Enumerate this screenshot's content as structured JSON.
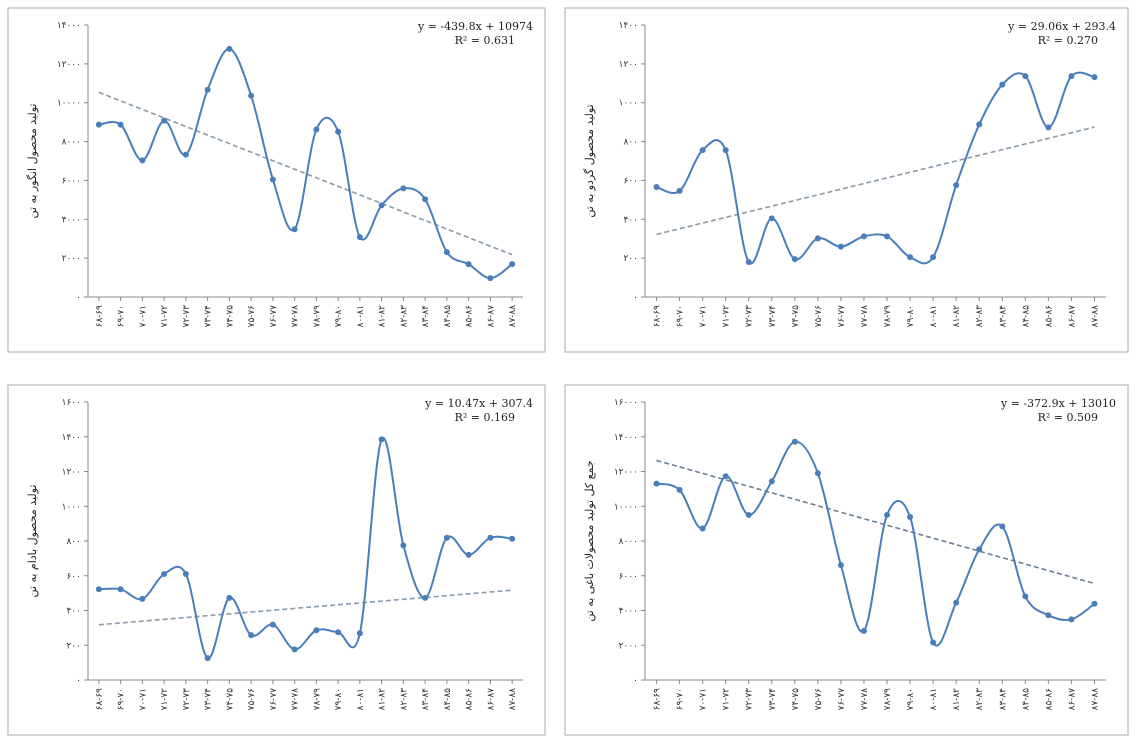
{
  "chart_data": [
    {
      "type": "line",
      "y_label": "تولید محصول انگور به تن",
      "categories": [
        "۶۸-۶۹",
        "۶۹-۷۰",
        "۷۰-۷۱",
        "۷۱-۷۲",
        "۷۲-۷۳",
        "۷۳-۷۴",
        "۷۴-۷۵",
        "۷۵-۷۶",
        "۷۶-۷۷",
        "۷۷-۷۸",
        "۷۸-۷۹",
        "۷۹-۸۰",
        "۸۰-۸۱",
        "۸۱-۸۲",
        "۸۲-۸۳",
        "۸۳-۸۴",
        "۸۴-۸۵",
        "۸۵-۸۶",
        "۸۶-۸۷",
        "۸۷-۸۸"
      ],
      "values": [
        8870,
        8870,
        7030,
        9080,
        7330,
        10670,
        12770,
        10360,
        6050,
        3490,
        8620,
        8510,
        3080,
        4720,
        5590,
        5030,
        2310,
        1690,
        970,
        1690
      ],
      "color": "#4a7ebb",
      "ylim": [
        0,
        14000
      ],
      "yticks": [
        {
          "value": 0,
          "label": "۰"
        },
        {
          "value": 2000,
          "label": "۲۰۰۰"
        },
        {
          "value": 4000,
          "label": "۴۰۰۰"
        },
        {
          "value": 6000,
          "label": "۶۰۰۰"
        },
        {
          "value": 8000,
          "label": "۸۰۰۰"
        },
        {
          "value": 10000,
          "label": "۱۰۰۰۰"
        },
        {
          "value": 12000,
          "label": "۱۲۰۰۰"
        },
        {
          "value": 14000,
          "label": "۱۴۰۰۰"
        }
      ],
      "trendline": {
        "slope": -439.8,
        "intercept": 10974,
        "equation": "y = -439.8x + 10974",
        "r2": "R² = 0.631",
        "color": "#8a9aa8"
      }
    },
    {
      "type": "line",
      "y_label": "تولید محصول گردو به تن",
      "categories": [
        "۶۸-۶۹",
        "۶۹-۷۰",
        "۷۰-۷۱",
        "۷۱-۷۲",
        "۷۲-۷۳",
        "۷۳-۷۴",
        "۷۴-۷۵",
        "۷۵-۷۶",
        "۷۶-۷۷",
        "۷۷-۷۸",
        "۷۸-۷۹",
        "۷۹-۸۰",
        "۸۰-۸۱",
        "۸۱-۸۲",
        "۸۲-۸۳",
        "۸۳-۸۴",
        "۸۴-۸۵",
        "۸۵-۸۶",
        "۸۶-۸۷",
        "۸۷-۸۸"
      ],
      "values": [
        566,
        546,
        756,
        756,
        180,
        405,
        195,
        302,
        259,
        312,
        312,
        205,
        205,
        576,
        888,
        1093,
        1137,
        873,
        1137,
        1132
      ],
      "color": "#4a7ebb",
      "ylim": [
        0,
        1400
      ],
      "yticks": [
        {
          "value": 0,
          "label": "۰"
        },
        {
          "value": 200,
          "label": "۲۰۰"
        },
        {
          "value": 400,
          "label": "۴۰۰"
        },
        {
          "value": 600,
          "label": "۶۰۰"
        },
        {
          "value": 800,
          "label": "۸۰۰"
        },
        {
          "value": 1000,
          "label": "۱۰۰۰"
        },
        {
          "value": 1200,
          "label": "۱۲۰۰"
        },
        {
          "value": 1400,
          "label": "۱۴۰۰"
        }
      ],
      "trendline": {
        "slope": 29.06,
        "intercept": 293.4,
        "equation": "y = 29.06x + 293.4",
        "r2": "R² = 0.270",
        "color": "#8a9aa8"
      }
    },
    {
      "type": "line",
      "y_label": "تولید محصول بادام به تن",
      "categories": [
        "۶۸-۶۹",
        "۶۹-۷۰",
        "۷۰-۷۱",
        "۷۱-۷۲",
        "۷۲-۷۳",
        "۷۳-۷۴",
        "۷۴-۷۵",
        "۷۵-۷۶",
        "۷۶-۷۷",
        "۷۷-۷۸",
        "۷۸-۷۹",
        "۷۹-۸۰",
        "۸۰-۸۱",
        "۸۱-۸۲",
        "۸۲-۸۳",
        "۸۳-۸۴",
        "۸۴-۸۵",
        "۸۵-۸۶",
        "۸۶-۸۷",
        "۸۷-۸۸"
      ],
      "values": [
        522,
        522,
        467,
        610,
        610,
        126,
        473,
        258,
        319,
        176,
        286,
        275,
        269,
        1385,
        775,
        473,
        819,
        720,
        819,
        813
      ],
      "color": "#4a7ebb",
      "ylim": [
        0,
        1600
      ],
      "yticks": [
        {
          "value": 0,
          "label": "۰"
        },
        {
          "value": 200,
          "label": "۲۰۰"
        },
        {
          "value": 400,
          "label": "۴۰۰"
        },
        {
          "value": 600,
          "label": "۶۰۰"
        },
        {
          "value": 800,
          "label": "۸۰۰"
        },
        {
          "value": 1000,
          "label": "۱۰۰۰"
        },
        {
          "value": 1200,
          "label": "۱۲۰۰"
        },
        {
          "value": 1400,
          "label": "۱۴۰۰"
        },
        {
          "value": 1600,
          "label": "۱۶۰۰"
        }
      ],
      "trendline": {
        "slope": 10.47,
        "intercept": 307.4,
        "equation": "y = 10.47x + 307.4",
        "r2": "R² = 0.169",
        "color": "#8a9aa8"
      }
    },
    {
      "type": "line",
      "y_label": "جمع کل تولید محصولات باغی به تن",
      "categories": [
        "۶۸-۶۹",
        "۶۹-۷۰",
        "۷۰-۷۱",
        "۷۱-۷۲",
        "۷۲-۷۳",
        "۷۳-۷۴",
        "۷۴-۷۵",
        "۷۵-۷۶",
        "۷۶-۷۷",
        "۷۷-۷۸",
        "۷۸-۷۹",
        "۷۹-۸۰",
        "۸۰-۸۱",
        "۸۱-۸۲",
        "۸۲-۸۳",
        "۸۳-۸۴",
        "۸۴-۸۵",
        "۸۵-۸۶",
        "۸۶-۸۷",
        "۸۷-۸۸"
      ],
      "values": [
        11300,
        10940,
        8720,
        11730,
        9500,
        11430,
        13710,
        11900,
        6610,
        2830,
        9500,
        9380,
        2160,
        4450,
        7520,
        8840,
        4810,
        3730,
        3490,
        4390
      ],
      "color": "#4a7ebb",
      "ylim": [
        0,
        16000
      ],
      "yticks": [
        {
          "value": 0,
          "label": "۰"
        },
        {
          "value": 2000,
          "label": "۲۰۰۰"
        },
        {
          "value": 4000,
          "label": "۴۰۰۰"
        },
        {
          "value": 6000,
          "label": "۶۰۰۰"
        },
        {
          "value": 8000,
          "label": "۸۰۰۰"
        },
        {
          "value": 10000,
          "label": "۱۰۰۰۰"
        },
        {
          "value": 12000,
          "label": "۱۲۰۰۰"
        },
        {
          "value": 14000,
          "label": "۱۴۰۰۰"
        },
        {
          "value": 16000,
          "label": "۱۶۰۰۰"
        }
      ],
      "trendline": {
        "slope": -372.9,
        "intercept": 13010,
        "equation": "y = -372.9x + 13010",
        "r2": "R² = 0.509",
        "color": "#6a7f95"
      }
    }
  ]
}
